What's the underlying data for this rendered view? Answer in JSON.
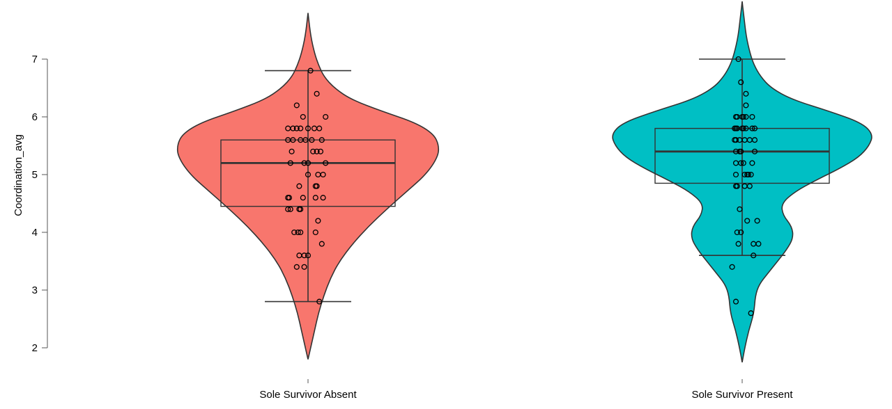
{
  "chart_data": {
    "type": "violin",
    "title": "",
    "xlabel": "",
    "ylabel": "Coordination_avg",
    "ylim": [
      2,
      7
    ],
    "yticks": [
      2,
      3,
      4,
      5,
      6,
      7
    ],
    "grid": false,
    "legend": "none",
    "categories": [
      "Sole Survivor Absent",
      "Sole Survivor Present"
    ],
    "colors": [
      "#F8766D",
      "#00BFC4"
    ],
    "groups": [
      {
        "name": "Sole Survivor Absent",
        "color": "#F8766D",
        "box": {
          "q1": 4.45,
          "median": 5.2,
          "q3": 5.6,
          "whisker_low": 2.8,
          "whisker_high": 6.8
        },
        "density": [
          [
            1.8,
            0.0
          ],
          [
            2.0,
            0.02
          ],
          [
            2.3,
            0.05
          ],
          [
            2.6,
            0.08
          ],
          [
            2.9,
            0.12
          ],
          [
            3.2,
            0.17
          ],
          [
            3.5,
            0.24
          ],
          [
            3.8,
            0.34
          ],
          [
            4.1,
            0.46
          ],
          [
            4.4,
            0.6
          ],
          [
            4.7,
            0.75
          ],
          [
            5.0,
            0.9
          ],
          [
            5.3,
            0.99
          ],
          [
            5.5,
            1.0
          ],
          [
            5.7,
            0.96
          ],
          [
            5.9,
            0.82
          ],
          [
            6.1,
            0.56
          ],
          [
            6.3,
            0.33
          ],
          [
            6.5,
            0.2
          ],
          [
            6.7,
            0.12
          ],
          [
            6.9,
            0.08
          ],
          [
            7.1,
            0.05
          ],
          [
            7.4,
            0.02
          ],
          [
            7.8,
            0.0
          ]
        ],
        "points": [
          [
            0.02,
            6.8
          ],
          [
            -0.09,
            6.2
          ],
          [
            -0.04,
            6.0
          ],
          [
            0.14,
            6.0
          ],
          [
            0.07,
            6.4
          ],
          [
            -0.16,
            5.8
          ],
          [
            -0.12,
            5.8
          ],
          [
            -0.06,
            5.8
          ],
          [
            0.0,
            5.8
          ],
          [
            0.05,
            5.8
          ],
          [
            0.09,
            5.8
          ],
          [
            -0.09,
            5.8
          ],
          [
            -0.16,
            5.6
          ],
          [
            -0.12,
            5.6
          ],
          [
            -0.06,
            5.6
          ],
          [
            -0.02,
            5.6
          ],
          [
            0.03,
            5.6
          ],
          [
            0.11,
            5.6
          ],
          [
            -0.13,
            5.4
          ],
          [
            0.04,
            5.4
          ],
          [
            0.07,
            5.4
          ],
          [
            0.1,
            5.4
          ],
          [
            -0.14,
            5.2
          ],
          [
            -0.03,
            5.2
          ],
          [
            0.0,
            5.2
          ],
          [
            0.14,
            5.2
          ],
          [
            0.0,
            5.0
          ],
          [
            0.08,
            5.0
          ],
          [
            0.12,
            5.0
          ],
          [
            -0.07,
            4.8
          ],
          [
            0.06,
            4.8
          ],
          [
            0.07,
            4.8
          ],
          [
            -0.16,
            4.6
          ],
          [
            -0.15,
            4.6
          ],
          [
            -0.04,
            4.6
          ],
          [
            0.06,
            4.6
          ],
          [
            0.12,
            4.6
          ],
          [
            -0.16,
            4.4
          ],
          [
            -0.14,
            4.4
          ],
          [
            -0.07,
            4.4
          ],
          [
            -0.06,
            4.4
          ],
          [
            0.08,
            4.2
          ],
          [
            -0.11,
            4.0
          ],
          [
            -0.08,
            4.0
          ],
          [
            -0.06,
            4.0
          ],
          [
            0.06,
            4.0
          ],
          [
            0.11,
            3.8
          ],
          [
            -0.07,
            3.6
          ],
          [
            -0.03,
            3.6
          ],
          [
            0.0,
            3.6
          ],
          [
            -0.09,
            3.4
          ],
          [
            -0.03,
            3.4
          ],
          [
            0.09,
            2.8
          ]
        ]
      },
      {
        "name": "Sole Survivor Present",
        "color": "#00BFC4",
        "box": {
          "q1": 4.85,
          "median": 5.4,
          "q3": 5.8,
          "whisker_low": 3.6,
          "whisker_high": 7.0
        },
        "density": [
          [
            1.75,
            0.0
          ],
          [
            2.0,
            0.02
          ],
          [
            2.3,
            0.05
          ],
          [
            2.6,
            0.09
          ],
          [
            2.9,
            0.1
          ],
          [
            3.1,
            0.13
          ],
          [
            3.3,
            0.2
          ],
          [
            3.5,
            0.27
          ],
          [
            3.7,
            0.34
          ],
          [
            3.9,
            0.39
          ],
          [
            4.1,
            0.38
          ],
          [
            4.3,
            0.31
          ],
          [
            4.5,
            0.3
          ],
          [
            4.7,
            0.4
          ],
          [
            4.9,
            0.56
          ],
          [
            5.1,
            0.74
          ],
          [
            5.3,
            0.89
          ],
          [
            5.5,
            0.97
          ],
          [
            5.7,
            1.0
          ],
          [
            5.9,
            0.91
          ],
          [
            6.1,
            0.66
          ],
          [
            6.3,
            0.38
          ],
          [
            6.5,
            0.22
          ],
          [
            6.7,
            0.14
          ],
          [
            6.9,
            0.09
          ],
          [
            7.1,
            0.06
          ],
          [
            7.4,
            0.03
          ],
          [
            7.8,
            0.01
          ],
          [
            8.0,
            0.0
          ]
        ],
        "points": [
          [
            -0.03,
            7.0
          ],
          [
            -0.01,
            6.6
          ],
          [
            0.03,
            6.4
          ],
          [
            0.03,
            6.2
          ],
          [
            -0.05,
            6.0
          ],
          [
            -0.04,
            6.0
          ],
          [
            0.0,
            6.0
          ],
          [
            0.01,
            6.0
          ],
          [
            0.03,
            6.0
          ],
          [
            0.08,
            6.0
          ],
          [
            -0.06,
            5.8
          ],
          [
            -0.05,
            5.8
          ],
          [
            -0.04,
            5.8
          ],
          [
            0.0,
            5.8
          ],
          [
            0.01,
            5.8
          ],
          [
            0.03,
            5.8
          ],
          [
            0.08,
            5.8
          ],
          [
            0.1,
            5.8
          ],
          [
            -0.06,
            5.6
          ],
          [
            -0.05,
            5.6
          ],
          [
            -0.02,
            5.6
          ],
          [
            0.02,
            5.6
          ],
          [
            0.06,
            5.6
          ],
          [
            0.1,
            5.6
          ],
          [
            -0.05,
            5.4
          ],
          [
            -0.02,
            5.4
          ],
          [
            -0.01,
            5.4
          ],
          [
            0.1,
            5.4
          ],
          [
            -0.05,
            5.2
          ],
          [
            -0.01,
            5.2
          ],
          [
            0.01,
            5.2
          ],
          [
            0.08,
            5.2
          ],
          [
            -0.05,
            5.0
          ],
          [
            0.02,
            5.0
          ],
          [
            0.04,
            5.0
          ],
          [
            0.05,
            5.0
          ],
          [
            0.07,
            5.0
          ],
          [
            -0.05,
            4.8
          ],
          [
            -0.04,
            4.8
          ],
          [
            0.02,
            4.8
          ],
          [
            0.06,
            4.8
          ],
          [
            -0.02,
            4.4
          ],
          [
            0.04,
            4.2
          ],
          [
            0.12,
            4.2
          ],
          [
            -0.04,
            4.0
          ],
          [
            -0.01,
            4.0
          ],
          [
            -0.03,
            3.8
          ],
          [
            0.09,
            3.8
          ],
          [
            0.13,
            3.8
          ],
          [
            0.09,
            3.6
          ],
          [
            -0.08,
            3.4
          ],
          [
            -0.05,
            2.8
          ],
          [
            0.07,
            2.6
          ]
        ]
      }
    ]
  }
}
